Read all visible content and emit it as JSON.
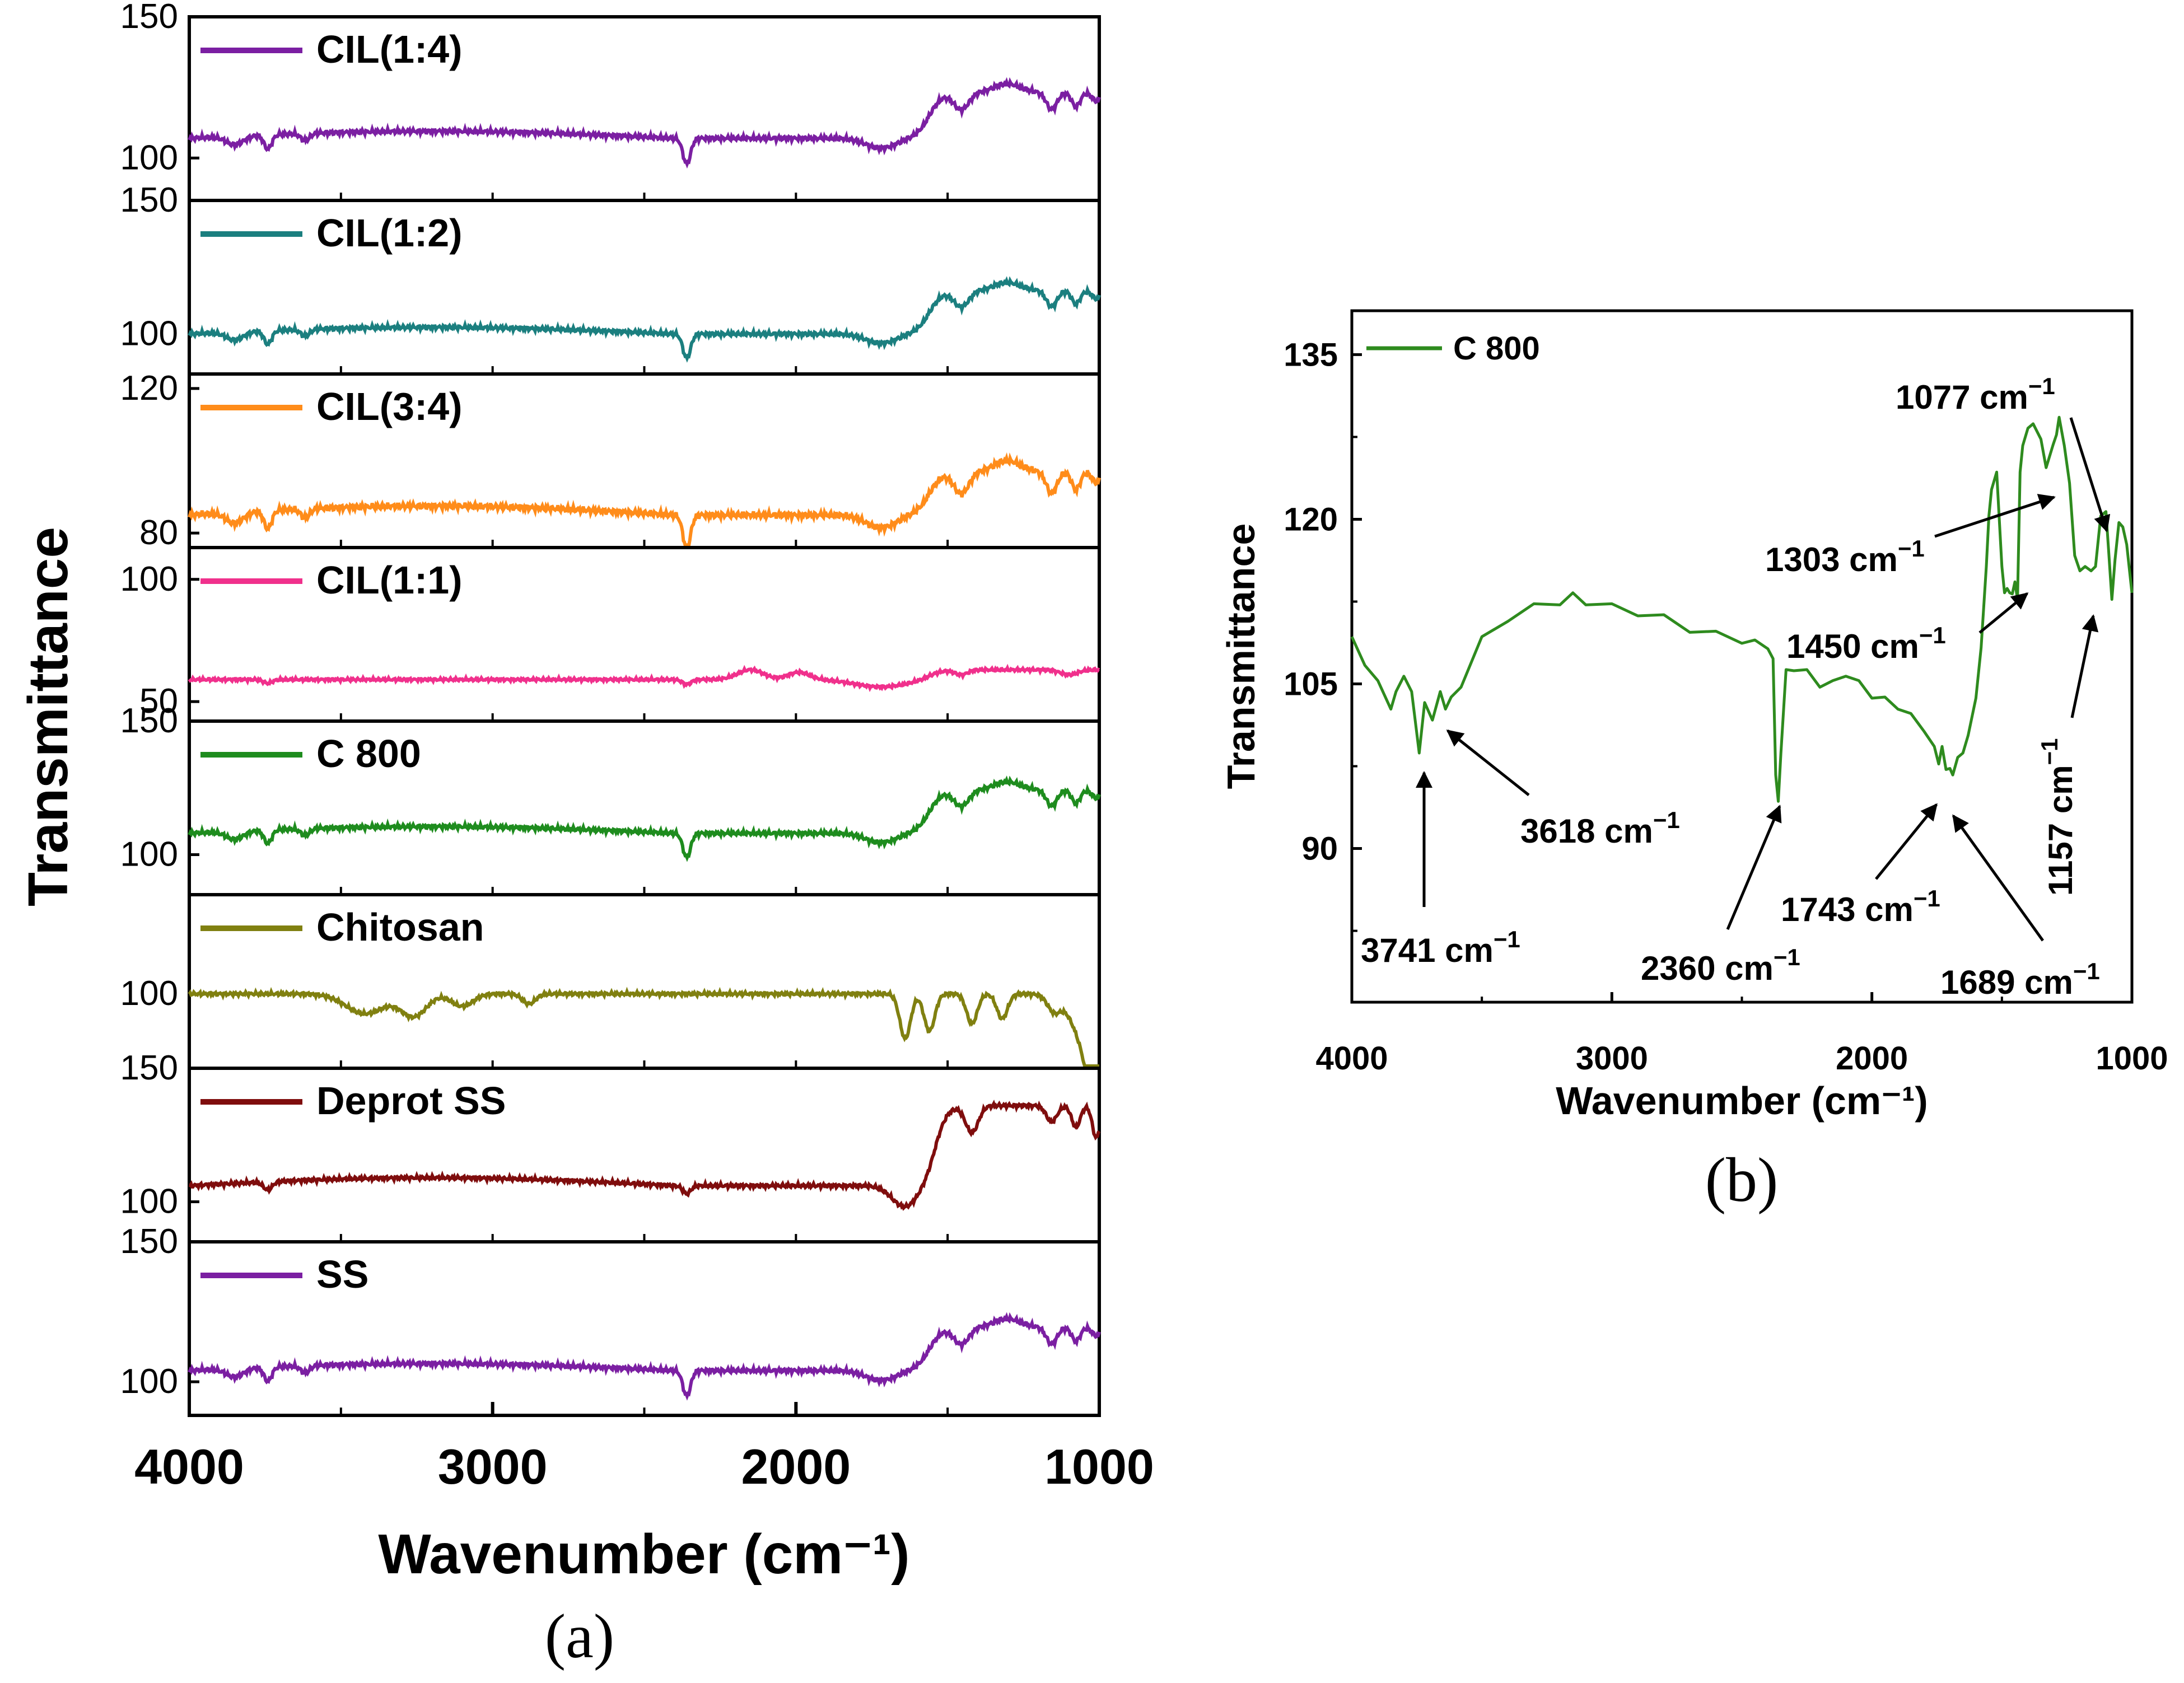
{
  "chart_data": [
    {
      "type": "line",
      "panel_label": "(a)",
      "xlabel": "Wavenumber (cm⁻¹)",
      "ylabel": "Transmittance",
      "xlim": [
        4000,
        1000
      ],
      "x_ticks": [
        "4000",
        "3000",
        "2000",
        "1000"
      ],
      "stacked_panels": [
        {
          "name": "CIL(1:4)",
          "color": "#7b1fa2",
          "ylim": [
            85,
            150
          ],
          "tick_labels": [
            "150",
            "100"
          ],
          "tick_values": [
            150,
            100
          ],
          "baseline": 107,
          "shape": "carbon"
        },
        {
          "name": "CIL(1:2)",
          "color": "#1b7f7f",
          "ylim": [
            85,
            150
          ],
          "tick_labels": [
            "150",
            "100"
          ],
          "tick_values": [
            150,
            100
          ],
          "baseline": 100,
          "shape": "carbon"
        },
        {
          "name": "CIL(3:4)",
          "color": "#ff8c1a",
          "ylim": [
            76,
            124
          ],
          "tick_labels": [
            "120",
            "80"
          ],
          "tick_values": [
            120,
            80
          ],
          "baseline": 85,
          "shape": "carbon"
        },
        {
          "name": "CIL(1:1)",
          "color": "#f0308c",
          "ylim": [
            42,
            113
          ],
          "tick_labels": [
            "100",
            "50"
          ],
          "tick_values": [
            100,
            50
          ],
          "baseline": 59,
          "shape": "flat"
        },
        {
          "name": "C 800",
          "color": "#1e8c1e",
          "ylim": [
            85,
            150
          ],
          "tick_labels": [
            "150",
            "100"
          ],
          "tick_values": [
            150,
            100
          ],
          "baseline": 108,
          "shape": "carbon"
        },
        {
          "name": "Chitosan",
          "color": "#808010",
          "ylim": [
            70,
            140
          ],
          "tick_labels": [
            "100"
          ],
          "tick_values": [
            100
          ],
          "baseline": 100,
          "shape": "chitosan"
        },
        {
          "name": "Deprot SS",
          "color": "#7f0d0d",
          "ylim": [
            85,
            150
          ],
          "tick_labels": [
            "150",
            "100"
          ],
          "tick_values": [
            150,
            100
          ],
          "baseline": 106,
          "shape": "deprot"
        },
        {
          "name": "SS",
          "color": "#7b1fa2",
          "ylim": [
            88,
            150
          ],
          "tick_labels": [
            "150",
            "100"
          ],
          "tick_values": [
            150,
            100
          ],
          "baseline": 104,
          "shape": "carbon"
        }
      ]
    },
    {
      "type": "line",
      "panel_label": "(b)",
      "legend": "C 800",
      "color": "#2e8b1e",
      "xlabel": "Wavenumber (cm⁻¹)",
      "ylabel": "Transmittance",
      "xlim": [
        4000,
        1000
      ],
      "ylim": [
        76,
        139
      ],
      "x_ticks": [
        "4000",
        "3000",
        "2000",
        "1000"
      ],
      "y_ticks": [
        "135",
        "120",
        "105",
        "90"
      ],
      "series": [
        {
          "name": "C 800",
          "x": [
            4000,
            3950,
            3900,
            3850,
            3830,
            3800,
            3770,
            3741,
            3720,
            3690,
            3660,
            3640,
            3618,
            3580,
            3500,
            3400,
            3300,
            3200,
            3150,
            3100,
            3000,
            2900,
            2800,
            2700,
            2600,
            2500,
            2450,
            2400,
            2380,
            2370,
            2360,
            2350,
            2330,
            2300,
            2250,
            2200,
            2150,
            2100,
            2050,
            2000,
            1950,
            1900,
            1850,
            1800,
            1760,
            1743,
            1730,
            1715,
            1700,
            1689,
            1670,
            1650,
            1630,
            1600,
            1580,
            1560,
            1550,
            1540,
            1520,
            1500,
            1490,
            1480,
            1470,
            1460,
            1450,
            1440,
            1430,
            1420,
            1400,
            1380,
            1350,
            1330,
            1303,
            1290,
            1280,
            1260,
            1240,
            1220,
            1200,
            1180,
            1157,
            1140,
            1120,
            1100,
            1090,
            1077,
            1065,
            1050,
            1035,
            1020,
            1000
          ],
          "y": [
            109,
            107,
            105,
            103,
            104,
            106,
            104,
            99,
            103,
            102,
            104,
            103,
            103.5,
            105,
            109,
            111,
            112,
            112.5,
            113,
            112.5,
            112,
            111.5,
            111,
            110,
            109.5,
            109,
            108.7,
            108.5,
            107,
            97,
            94,
            99,
            106,
            106.5,
            106,
            105,
            105,
            106,
            105,
            104,
            103.5,
            103,
            102,
            101,
            99,
            98,
            99,
            97.5,
            97,
            97,
            98,
            99,
            100,
            104,
            108,
            116,
            120,
            123,
            124,
            116,
            113,
            114,
            113,
            113.5,
            114,
            113,
            124,
            127,
            128,
            129,
            127,
            125,
            126.5,
            128,
            129,
            127,
            123,
            117,
            115,
            116,
            115,
            116,
            120,
            121,
            117,
            113,
            116,
            120,
            119,
            118,
            113
          ]
        }
      ],
      "annotations": [
        {
          "text": "3741 cm",
          "sup": "−1"
        },
        {
          "text": "3618 cm",
          "sup": "−1"
        },
        {
          "text": "2360 cm",
          "sup": "−1"
        },
        {
          "text": "1743 cm",
          "sup": "−1"
        },
        {
          "text": "1689 cm",
          "sup": "−1"
        },
        {
          "text": "1450 cm",
          "sup": "−1"
        },
        {
          "text": "1303 cm",
          "sup": "−1"
        },
        {
          "text": "1077 cm",
          "sup": "−1"
        },
        {
          "text": "1157 cm",
          "sup": "−1"
        }
      ]
    }
  ]
}
